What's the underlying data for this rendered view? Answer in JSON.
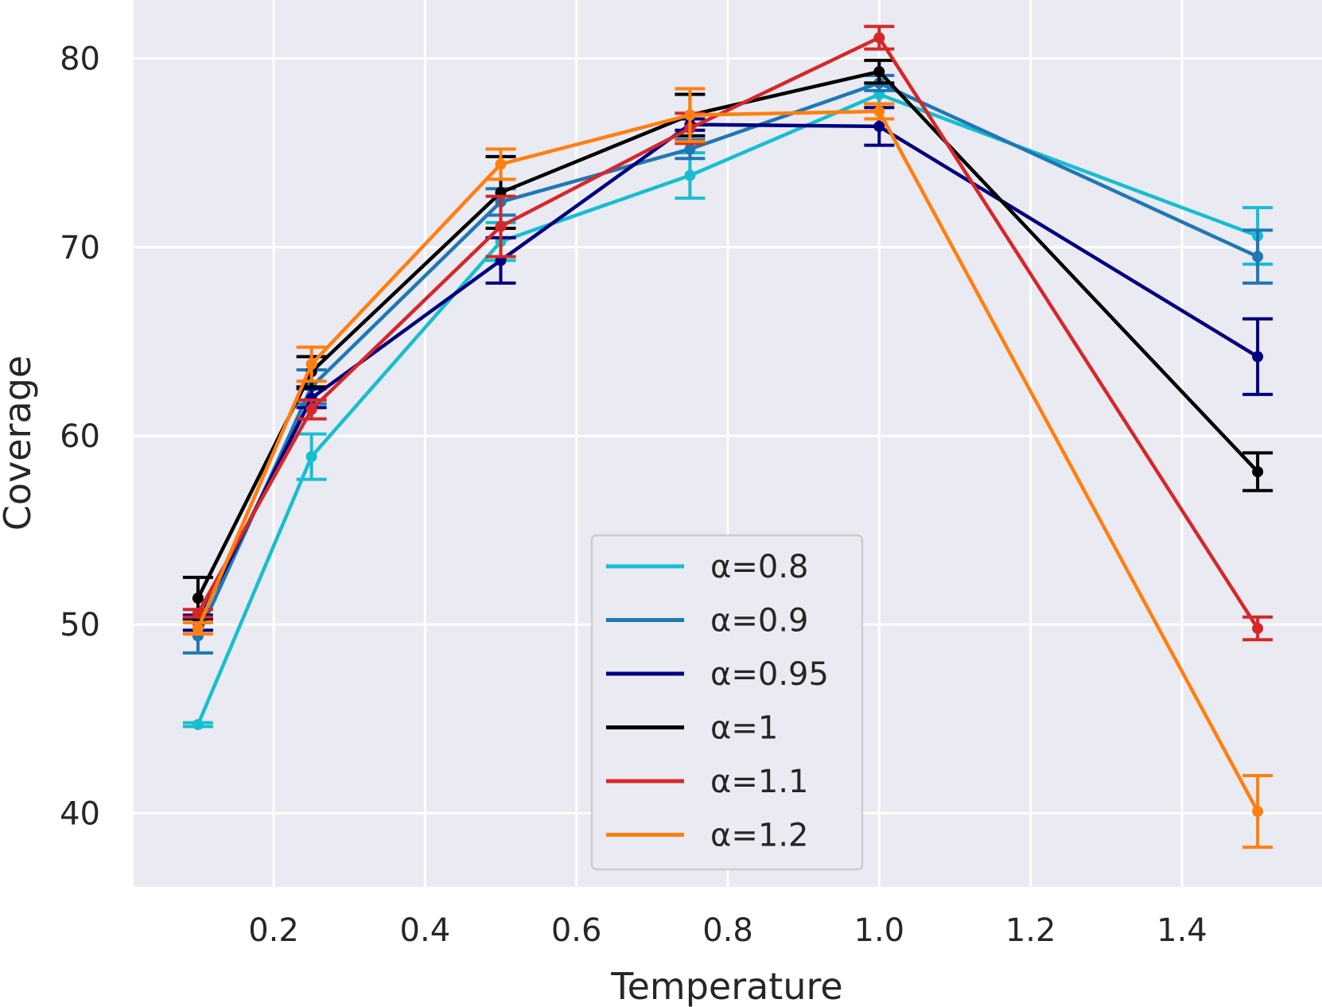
{
  "chart_data": {
    "type": "line",
    "title": "",
    "xlabel": "Temperature",
    "ylabel": "Coverage",
    "xlim": [
      0.015,
      1.585
    ],
    "ylim": [
      36.1,
      83.1
    ],
    "xticks": [
      0.2,
      0.4,
      0.6,
      0.8,
      1.0,
      1.2,
      1.4
    ],
    "xtick_labels": [
      "0.2",
      "0.4",
      "0.6",
      "0.8",
      "1.0",
      "1.2",
      "1.4"
    ],
    "yticks": [
      40,
      50,
      60,
      70,
      80
    ],
    "ytick_labels": [
      "40",
      "50",
      "60",
      "70",
      "80"
    ],
    "grid": true,
    "legend_position": "bottom-center",
    "x": [
      0.1,
      0.25,
      0.5,
      0.75,
      1.0,
      1.5
    ],
    "series": [
      {
        "name": "α=0.8",
        "color": "#17becf",
        "values": [
          44.7,
          58.9,
          70.3,
          73.8,
          78.1,
          70.6
        ],
        "errors": [
          0.1,
          1.2,
          1.0,
          1.2,
          0.5,
          1.5
        ]
      },
      {
        "name": "α=0.9",
        "color": "#1f77b4",
        "values": [
          49.4,
          62.6,
          72.4,
          75.2,
          78.7,
          69.5
        ],
        "errors": [
          0.9,
          0.9,
          0.7,
          0.5,
          0.4,
          1.4
        ]
      },
      {
        "name": "α=0.95",
        "color": "#000080",
        "values": [
          50.1,
          62.0,
          69.3,
          76.5,
          76.4,
          64.2
        ],
        "errors": [
          0.4,
          0.5,
          1.2,
          0.3,
          1.0,
          2.0
        ]
      },
      {
        "name": "α=1",
        "color": "#000000",
        "values": [
          51.4,
          63.4,
          72.9,
          77.0,
          79.3,
          58.1
        ],
        "errors": [
          1.1,
          0.8,
          1.9,
          1.1,
          0.6,
          1.0
        ]
      },
      {
        "name": "α=1.1",
        "color": "#d62728",
        "values": [
          50.6,
          61.4,
          71.1,
          76.3,
          81.1,
          49.8
        ],
        "errors": [
          0.2,
          0.5,
          1.6,
          0.8,
          0.6,
          0.6
        ]
      },
      {
        "name": "α=1.2",
        "color": "#ff7f0e",
        "values": [
          49.8,
          63.8,
          74.4,
          77.0,
          77.2,
          40.1
        ],
        "errors": [
          0.3,
          0.9,
          0.8,
          1.4,
          0.4,
          1.9
        ]
      }
    ]
  }
}
